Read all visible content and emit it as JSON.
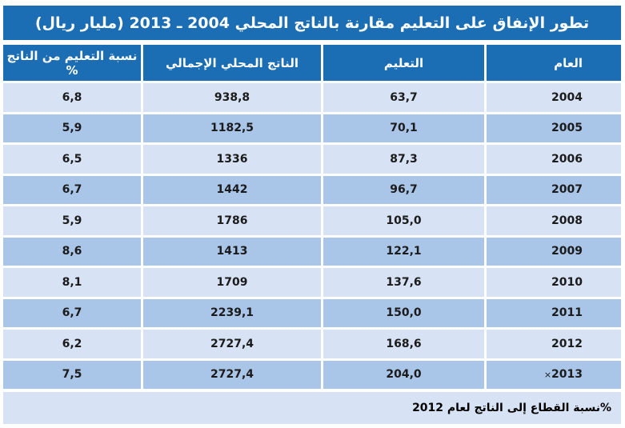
{
  "title": "تطور الإنفاق على التعليم مقارنة بالناتج المحلي 2004 ـ 2013 (مليار ريال)",
  "colors": {
    "header_blue": "#1b6db4",
    "row_light": "#d7e3f4",
    "row_dark": "#a9c5e8"
  },
  "table": {
    "headers": [
      "العام",
      "التعليم",
      "الناتج المحلي الإجمالي",
      "نسبة التعليم من الناتج %"
    ],
    "rows": [
      {
        "year": "2004",
        "education": "63,7",
        "gdp": "938,8",
        "ratio": "6,8"
      },
      {
        "year": "2005",
        "education": "70,1",
        "gdp": "1182,5",
        "ratio": "5,9"
      },
      {
        "year": "2006",
        "education": "87,3",
        "gdp": "1336",
        "ratio": "6,5"
      },
      {
        "year": "2007",
        "education": "96,7",
        "gdp": "1442",
        "ratio": "6,7"
      },
      {
        "year": "2008",
        "education": "105,0",
        "gdp": "1786",
        "ratio": "5,9"
      },
      {
        "year": "2009",
        "education": "122,1",
        "gdp": "1413",
        "ratio": "8,6"
      },
      {
        "year": "2010",
        "education": "137,6",
        "gdp": "1709",
        "ratio": "8,1"
      },
      {
        "year": "2011",
        "education": "150,0",
        "gdp": "2239,1",
        "ratio": "6,7"
      },
      {
        "year": "2012",
        "education": "168,6",
        "gdp": "2727,4",
        "ratio": "6,2"
      },
      {
        "year": "2013",
        "year_mark": "×",
        "education": "204,0",
        "gdp": "2727,4",
        "ratio": "7,5"
      }
    ]
  },
  "footnote": "%نسبة القطاع إلى الناتج لعام 2012"
}
